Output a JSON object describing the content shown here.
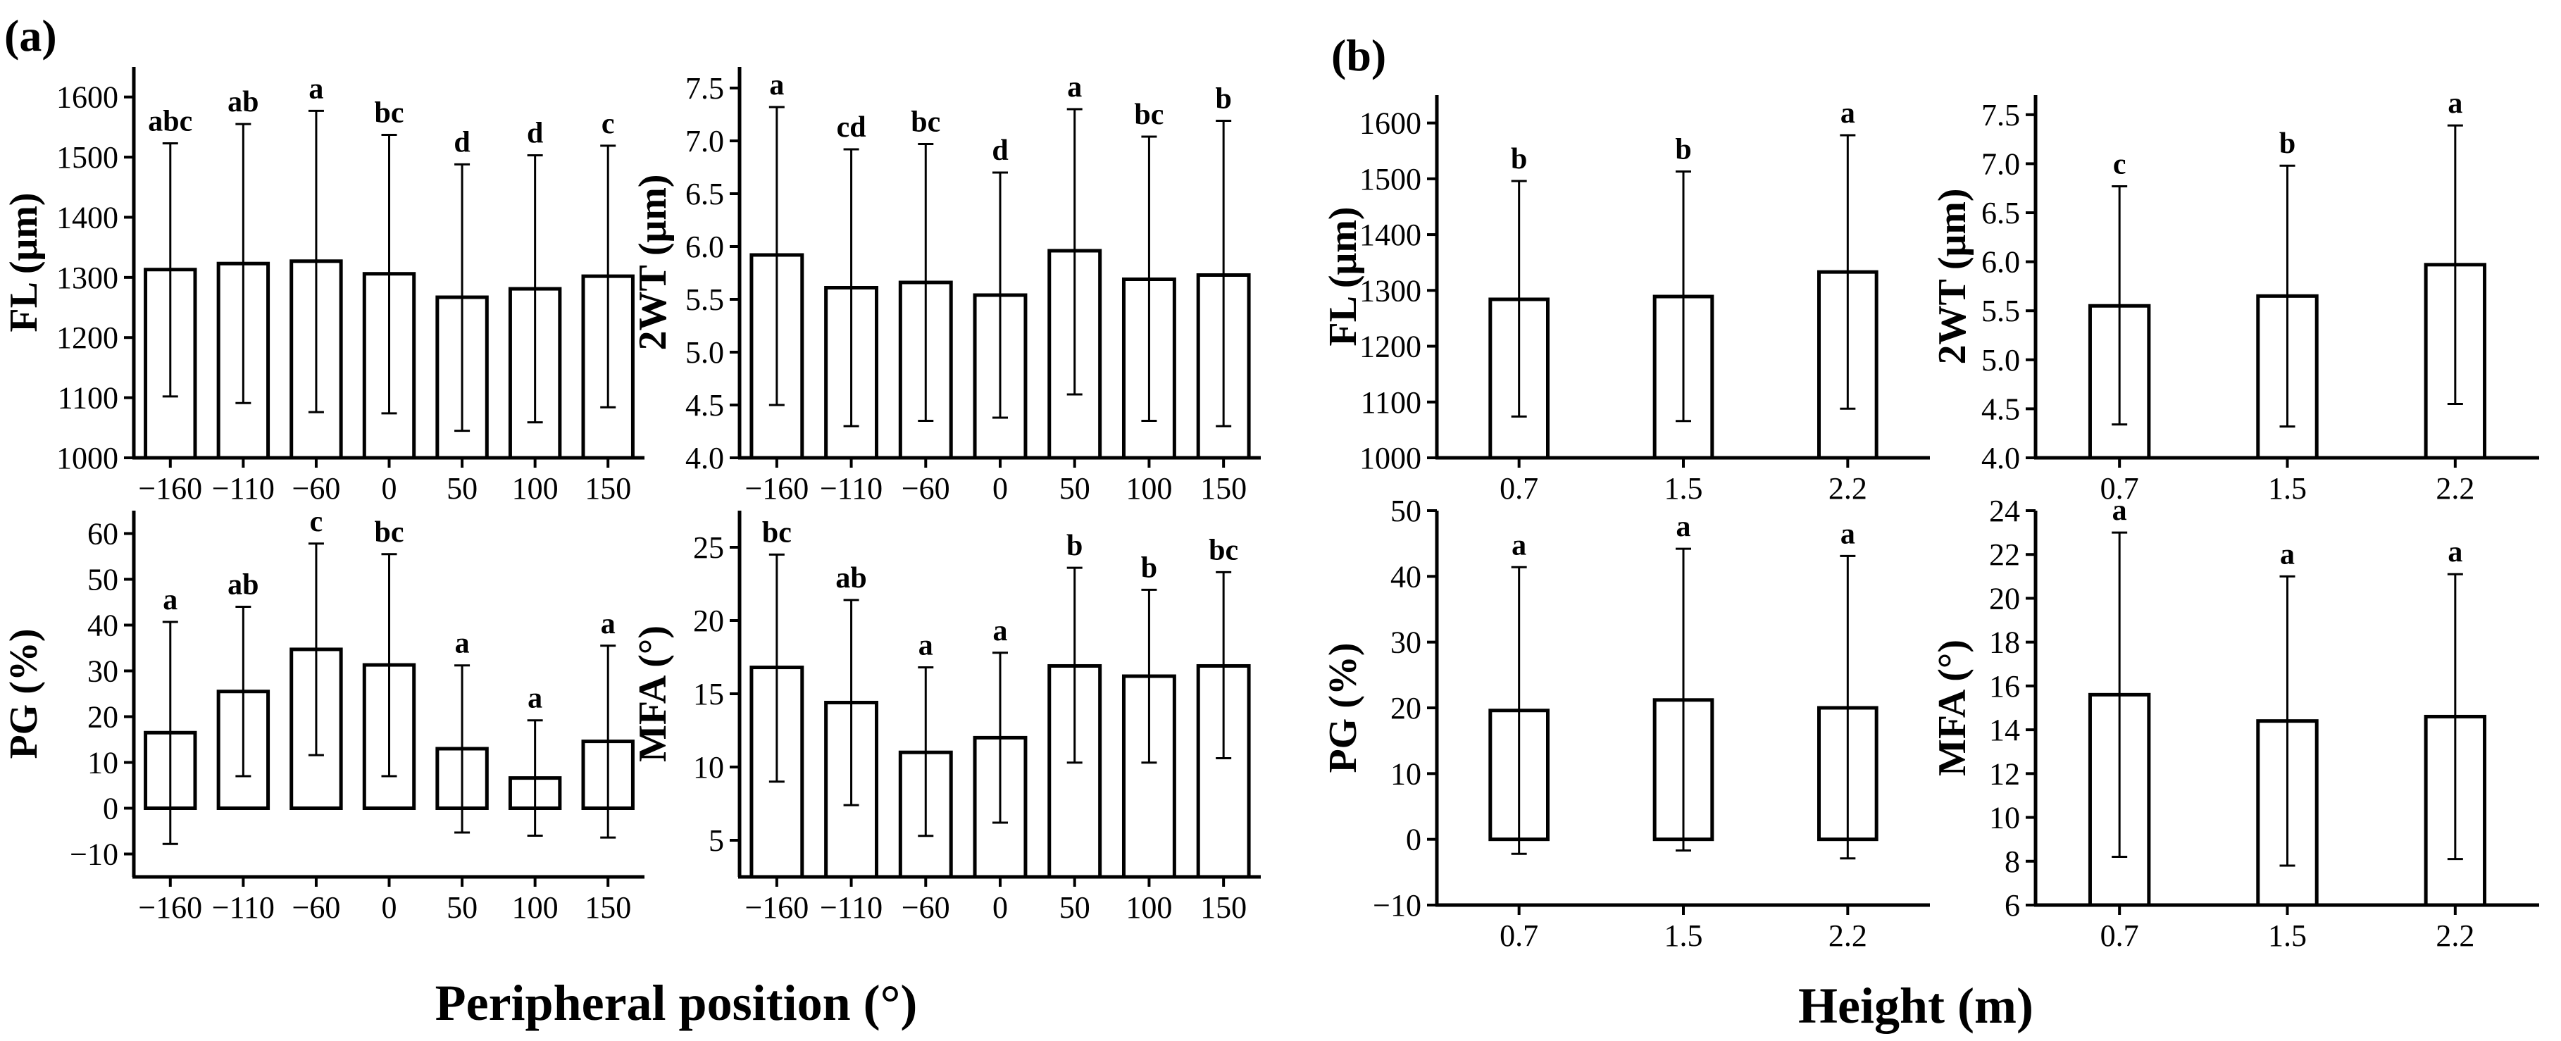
{
  "panel_labels": {
    "a": "(a)",
    "b": "(b)"
  },
  "x_titles": {
    "a": "Peripheral position  (°)",
    "b": "Height (m)"
  },
  "chart_data": [
    {
      "type": "bar",
      "panel": "a",
      "categories": [
        "−160",
        "−110",
        "−60",
        "0",
        "50",
        "100",
        "150"
      ],
      "values": [
        1313,
        1323,
        1327,
        1306,
        1267,
        1281,
        1302
      ],
      "err_low": [
        1102,
        1091,
        1076,
        1074,
        1045,
        1059,
        1084
      ],
      "err_high": [
        1523,
        1555,
        1577,
        1537,
        1488,
        1503,
        1519
      ],
      "sig": [
        "abc",
        "ab",
        "a",
        "bc",
        "d",
        "d",
        "c"
      ],
      "ylabel": "FL (μm)",
      "ylim": [
        1000,
        1650
      ],
      "yticks": [
        1000,
        1100,
        1200,
        1300,
        1400,
        1500,
        1600
      ],
      "ytick_labels": [
        "1000",
        "1100",
        "1200",
        "1300",
        "1400",
        "1500",
        "1600"
      ]
    },
    {
      "type": "bar",
      "panel": "a",
      "categories": [
        "−160",
        "−110",
        "−60",
        "0",
        "50",
        "100",
        "150"
      ],
      "values": [
        5.92,
        5.61,
        5.66,
        5.54,
        5.96,
        5.69,
        5.73
      ],
      "err_low": [
        4.5,
        4.3,
        4.35,
        4.38,
        4.6,
        4.35,
        4.3
      ],
      "err_high": [
        7.32,
        6.92,
        6.97,
        6.7,
        7.3,
        7.04,
        7.19
      ],
      "sig": [
        "a",
        "cd",
        "bc",
        "d",
        "a",
        "bc",
        "b"
      ],
      "ylabel": "2WT (μm)",
      "ylim": [
        4.0,
        7.7
      ],
      "yticks": [
        4.0,
        4.5,
        5.0,
        5.5,
        6.0,
        6.5,
        7.0,
        7.5
      ],
      "ytick_labels": [
        "4.0",
        "4.5",
        "5.0",
        "5.5",
        "6.0",
        "6.5",
        "7.0",
        "7.5"
      ]
    },
    {
      "type": "bar",
      "panel": "a",
      "categories": [
        "−160",
        "−110",
        "−60",
        "0",
        "50",
        "100",
        "150"
      ],
      "values": [
        16.5,
        25.5,
        34.7,
        31.3,
        13.0,
        6.6,
        14.6
      ],
      "err_low": [
        -7.8,
        7.0,
        11.6,
        7.0,
        -5.3,
        -6.0,
        -6.4
      ],
      "err_high": [
        40.7,
        44.0,
        57.8,
        55.5,
        31.2,
        19.2,
        35.5
      ],
      "sig": [
        "a",
        "ab",
        "c",
        "bc",
        "a",
        "a",
        "a"
      ],
      "ylabel": "PG (%)",
      "ylim": [
        -15,
        65
      ],
      "yticks": [
        -10,
        0,
        10,
        20,
        30,
        40,
        50,
        60
      ],
      "ytick_labels": [
        "−10",
        "0",
        "10",
        "20",
        "30",
        "40",
        "50",
        "60"
      ]
    },
    {
      "type": "bar",
      "panel": "a",
      "categories": [
        "−160",
        "−110",
        "−60",
        "0",
        "50",
        "100",
        "150"
      ],
      "values": [
        16.8,
        14.4,
        11.0,
        12.0,
        16.9,
        16.2,
        16.9
      ],
      "err_low": [
        9.0,
        7.4,
        5.3,
        6.2,
        10.3,
        10.3,
        10.6
      ],
      "err_high": [
        24.5,
        21.4,
        16.8,
        17.8,
        23.6,
        22.1,
        23.3
      ],
      "sig": [
        "bc",
        "ab",
        "a",
        "a",
        "b",
        "b",
        "bc"
      ],
      "ylabel": "MFA (°)",
      "ylim": [
        2.5,
        27.5
      ],
      "yticks": [
        5,
        10,
        15,
        20,
        25
      ],
      "ytick_labels": [
        "5",
        "10",
        "15",
        "20",
        "25"
      ]
    },
    {
      "type": "bar",
      "panel": "b",
      "categories": [
        "0.7",
        "1.5",
        "2.2"
      ],
      "values": [
        1284,
        1289,
        1333
      ],
      "err_low": [
        1074,
        1066,
        1088
      ],
      "err_high": [
        1496,
        1513,
        1578
      ],
      "sig": [
        "b",
        "b",
        "a"
      ],
      "ylabel": "FL (μm)",
      "ylim": [
        1000,
        1650
      ],
      "yticks": [
        1000,
        1100,
        1200,
        1300,
        1400,
        1500,
        1600
      ],
      "ytick_labels": [
        "1000",
        "1100",
        "1200",
        "1300",
        "1400",
        "1500",
        "1600"
      ]
    },
    {
      "type": "bar",
      "panel": "b",
      "categories": [
        "0.7",
        "1.5",
        "2.2"
      ],
      "values": [
        5.55,
        5.65,
        5.97
      ],
      "err_low": [
        4.34,
        4.32,
        4.55
      ],
      "err_high": [
        6.77,
        6.98,
        7.39
      ],
      "sig": [
        "c",
        "b",
        "a"
      ],
      "ylabel": "2WT (μm)",
      "ylim": [
        4.0,
        7.7
      ],
      "yticks": [
        4.0,
        4.5,
        5.0,
        5.5,
        6.0,
        6.5,
        7.0,
        7.5
      ],
      "ytick_labels": [
        "4.0",
        "4.5",
        "5.0",
        "5.5",
        "6.0",
        "6.5",
        "7.0",
        "7.5"
      ]
    },
    {
      "type": "bar",
      "panel": "b",
      "categories": [
        "0.7",
        "1.5",
        "2.2"
      ],
      "values": [
        19.6,
        21.2,
        20.0
      ],
      "err_low": [
        -2.2,
        -1.7,
        -2.9
      ],
      "err_high": [
        41.4,
        44.2,
        43.1
      ],
      "sig": [
        "a",
        "a",
        "a"
      ],
      "ylabel": "PG (%)",
      "ylim": [
        -10,
        50
      ],
      "yticks": [
        -10,
        0,
        10,
        20,
        30,
        40,
        50
      ],
      "ytick_labels": [
        "−10",
        "0",
        "10",
        "20",
        "30",
        "40",
        "50"
      ]
    },
    {
      "type": "bar",
      "panel": "b",
      "categories": [
        "0.7",
        "1.5",
        "2.2"
      ],
      "values": [
        15.6,
        14.4,
        14.6
      ],
      "err_low": [
        8.2,
        7.8,
        8.1
      ],
      "err_high": [
        23.0,
        21.0,
        21.1
      ],
      "sig": [
        "a",
        "a",
        "a"
      ],
      "ylabel": "MFA (°)",
      "ylim": [
        6,
        24
      ],
      "yticks": [
        6,
        8,
        10,
        12,
        14,
        16,
        18,
        20,
        22,
        24
      ],
      "ytick_labels": [
        "6",
        "8",
        "10",
        "12",
        "14",
        "16",
        "18",
        "20",
        "22",
        "24"
      ]
    }
  ]
}
